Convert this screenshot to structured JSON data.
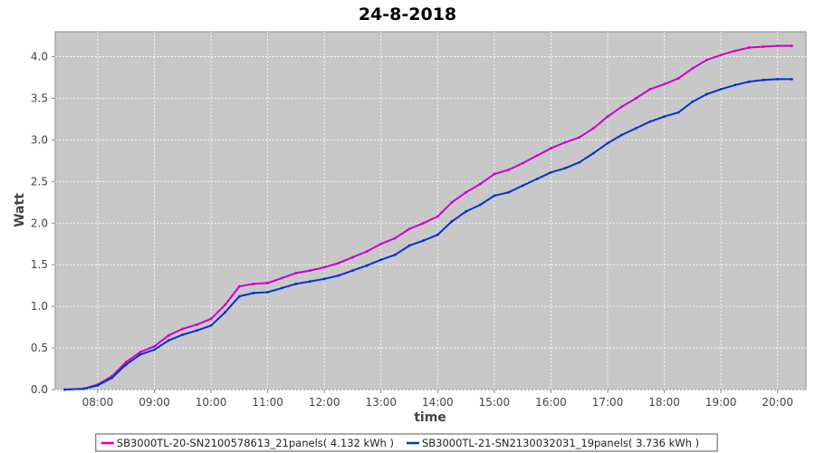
{
  "chart_data": {
    "type": "line",
    "title": "24-8-2018",
    "xlabel": "time",
    "ylabel": "Watt",
    "x_ticks": [
      "08:00",
      "09:00",
      "10:00",
      "11:00",
      "12:00",
      "13:00",
      "14:00",
      "15:00",
      "16:00",
      "17:00",
      "18:00",
      "19:00",
      "20:00"
    ],
    "y_ticks": [
      "0.0",
      "0.5",
      "1.0",
      "1.5",
      "2.0",
      "2.5",
      "3.0",
      "3.5",
      "4.0"
    ],
    "xlim": [
      "07:15",
      "20:30"
    ],
    "ylim": [
      0,
      4.3
    ],
    "grid": true,
    "legend_position": "bottom",
    "series": [
      {
        "name": "SB3000TL-20-SN2100578613_21panels( 4.132 kWh )",
        "color": "#cc00cc",
        "x": [
          "07:25",
          "07:45",
          "08:00",
          "08:15",
          "08:30",
          "08:45",
          "09:00",
          "09:15",
          "09:30",
          "09:45",
          "10:00",
          "10:15",
          "10:30",
          "10:45",
          "11:00",
          "11:15",
          "11:30",
          "11:45",
          "12:00",
          "12:15",
          "12:30",
          "12:45",
          "13:00",
          "13:15",
          "13:30",
          "13:45",
          "14:00",
          "14:15",
          "14:30",
          "14:45",
          "15:00",
          "15:15",
          "15:30",
          "15:45",
          "16:00",
          "16:15",
          "16:30",
          "16:45",
          "17:00",
          "17:15",
          "17:30",
          "17:45",
          "18:00",
          "18:15",
          "18:30",
          "18:45",
          "19:00",
          "19:15",
          "19:30",
          "19:45",
          "20:00",
          "20:15"
        ],
        "values": [
          0.0,
          0.01,
          0.06,
          0.16,
          0.33,
          0.45,
          0.52,
          0.65,
          0.73,
          0.78,
          0.85,
          1.02,
          1.24,
          1.27,
          1.28,
          1.34,
          1.4,
          1.43,
          1.47,
          1.52,
          1.59,
          1.66,
          1.75,
          1.82,
          1.93,
          2.0,
          2.08,
          2.25,
          2.37,
          2.47,
          2.59,
          2.64,
          2.72,
          2.81,
          2.9,
          2.97,
          3.03,
          3.14,
          3.28,
          3.4,
          3.5,
          3.61,
          3.67,
          3.74,
          3.86,
          3.96,
          4.02,
          4.07,
          4.11,
          4.12,
          4.13,
          4.13
        ]
      },
      {
        "name": "SB3000TL-21-SN2130032031_19panels( 3.736 kWh )",
        "color": "#0033cc",
        "x": [
          "07:25",
          "07:45",
          "08:00",
          "08:15",
          "08:30",
          "08:45",
          "09:00",
          "09:15",
          "09:30",
          "09:45",
          "10:00",
          "10:15",
          "10:30",
          "10:45",
          "11:00",
          "11:15",
          "11:30",
          "11:45",
          "12:00",
          "12:15",
          "12:30",
          "12:45",
          "13:00",
          "13:15",
          "13:30",
          "13:45",
          "14:00",
          "14:15",
          "14:30",
          "14:45",
          "15:00",
          "15:15",
          "15:30",
          "15:45",
          "16:00",
          "16:15",
          "16:30",
          "16:45",
          "17:00",
          "17:15",
          "17:30",
          "17:45",
          "18:00",
          "18:15",
          "18:30",
          "18:45",
          "19:00",
          "19:15",
          "19:30",
          "19:45",
          "20:00",
          "20:15"
        ],
        "values": [
          0.0,
          0.01,
          0.05,
          0.14,
          0.3,
          0.42,
          0.48,
          0.59,
          0.66,
          0.71,
          0.77,
          0.93,
          1.12,
          1.16,
          1.17,
          1.22,
          1.27,
          1.3,
          1.33,
          1.37,
          1.43,
          1.49,
          1.56,
          1.62,
          1.73,
          1.79,
          1.86,
          2.02,
          2.14,
          2.22,
          2.33,
          2.37,
          2.45,
          2.53,
          2.61,
          2.66,
          2.73,
          2.84,
          2.96,
          3.06,
          3.14,
          3.22,
          3.28,
          3.33,
          3.46,
          3.55,
          3.61,
          3.66,
          3.7,
          3.72,
          3.73,
          3.73
        ]
      }
    ]
  }
}
